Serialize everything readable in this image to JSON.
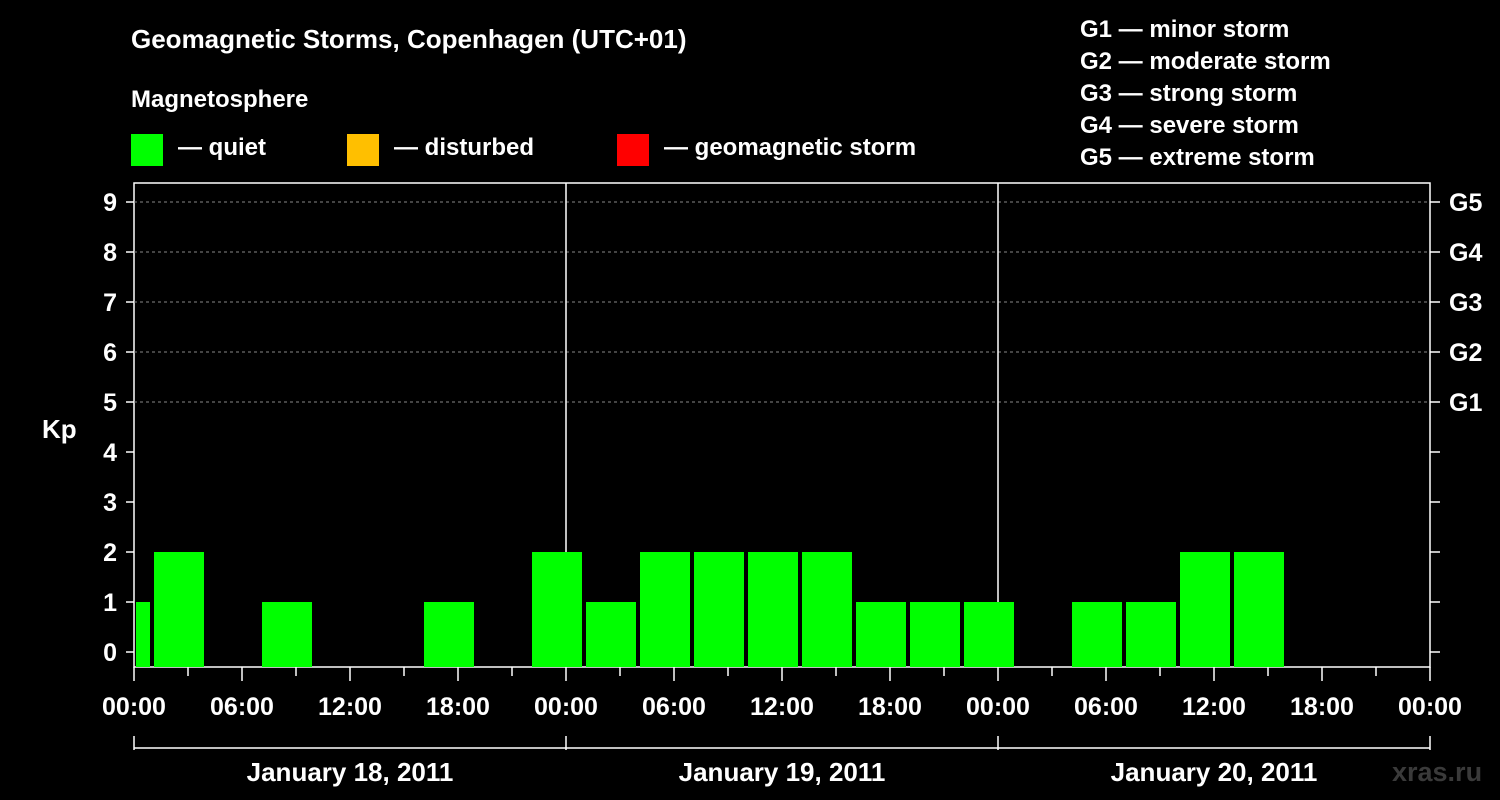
{
  "title": "Geomagnetic Storms, Copenhagen (UTC+01)",
  "magnetosphere": {
    "label": "Magnetosphere",
    "items": [
      {
        "label": "— quiet",
        "color": "#00ff00"
      },
      {
        "label": "— disturbed",
        "color": "#ffbf00"
      },
      {
        "label": "— geomagnetic storm",
        "color": "#ff0000"
      }
    ]
  },
  "storm_levels": [
    "G1 — minor storm",
    "G2 — moderate storm",
    "G3 — strong storm",
    "G4 — severe storm",
    "G5 — extreme storm"
  ],
  "watermark": "xras.ru",
  "chart_data": {
    "type": "bar",
    "ylabel": "Kp",
    "ylim": [
      0,
      9
    ],
    "y_ticks": [
      "0",
      "1",
      "2",
      "3",
      "4",
      "5",
      "6",
      "7",
      "8",
      "9"
    ],
    "right_ticks": [
      {
        "value": 5,
        "label": "G1"
      },
      {
        "value": 6,
        "label": "G2"
      },
      {
        "value": 7,
        "label": "G3"
      },
      {
        "value": 8,
        "label": "G4"
      },
      {
        "value": 9,
        "label": "G5"
      }
    ],
    "x_tick_labels": [
      "00:00",
      "06:00",
      "12:00",
      "18:00",
      "00:00",
      "06:00",
      "12:00",
      "18:00",
      "00:00",
      "06:00",
      "12:00",
      "18:00",
      "00:00"
    ],
    "days": [
      "January 18, 2011",
      "January 19, 2011",
      "January 20, 2011"
    ],
    "grid": "dashed horizontal lines at Kp 5–9",
    "bar_color": "#00ff00",
    "bars": [
      {
        "start": "Jan 18 00:00",
        "end": "Jan 18 01:00",
        "kp": 1
      },
      {
        "start": "Jan 18 01:00",
        "end": "Jan 18 04:00",
        "kp": 2
      },
      {
        "start": "Jan 18 04:00",
        "end": "Jan 18 07:00",
        "kp": 0
      },
      {
        "start": "Jan 18 07:00",
        "end": "Jan 18 10:00",
        "kp": 1
      },
      {
        "start": "Jan 18 10:00",
        "end": "Jan 18 13:00",
        "kp": 0
      },
      {
        "start": "Jan 18 13:00",
        "end": "Jan 18 16:00",
        "kp": 0
      },
      {
        "start": "Jan 18 16:00",
        "end": "Jan 18 19:00",
        "kp": 1
      },
      {
        "start": "Jan 18 19:00",
        "end": "Jan 18 22:00",
        "kp": 0
      },
      {
        "start": "Jan 18 22:00",
        "end": "Jan 19 01:00",
        "kp": 2
      },
      {
        "start": "Jan 19 01:00",
        "end": "Jan 19 04:00",
        "kp": 1
      },
      {
        "start": "Jan 19 04:00",
        "end": "Jan 19 07:00",
        "kp": 2
      },
      {
        "start": "Jan 19 07:00",
        "end": "Jan 19 10:00",
        "kp": 2
      },
      {
        "start": "Jan 19 10:00",
        "end": "Jan 19 13:00",
        "kp": 2
      },
      {
        "start": "Jan 19 13:00",
        "end": "Jan 19 16:00",
        "kp": 2
      },
      {
        "start": "Jan 19 16:00",
        "end": "Jan 19 19:00",
        "kp": 1
      },
      {
        "start": "Jan 19 19:00",
        "end": "Jan 19 22:00",
        "kp": 1
      },
      {
        "start": "Jan 19 22:00",
        "end": "Jan 20 01:00",
        "kp": 1
      },
      {
        "start": "Jan 20 01:00",
        "end": "Jan 20 04:00",
        "kp": 0
      },
      {
        "start": "Jan 20 04:00",
        "end": "Jan 20 07:00",
        "kp": 1
      },
      {
        "start": "Jan 20 07:00",
        "end": "Jan 20 10:00",
        "kp": 1
      },
      {
        "start": "Jan 20 10:00",
        "end": "Jan 20 13:00",
        "kp": 2
      },
      {
        "start": "Jan 20 13:00",
        "end": "Jan 20 16:00",
        "kp": 2
      }
    ]
  }
}
